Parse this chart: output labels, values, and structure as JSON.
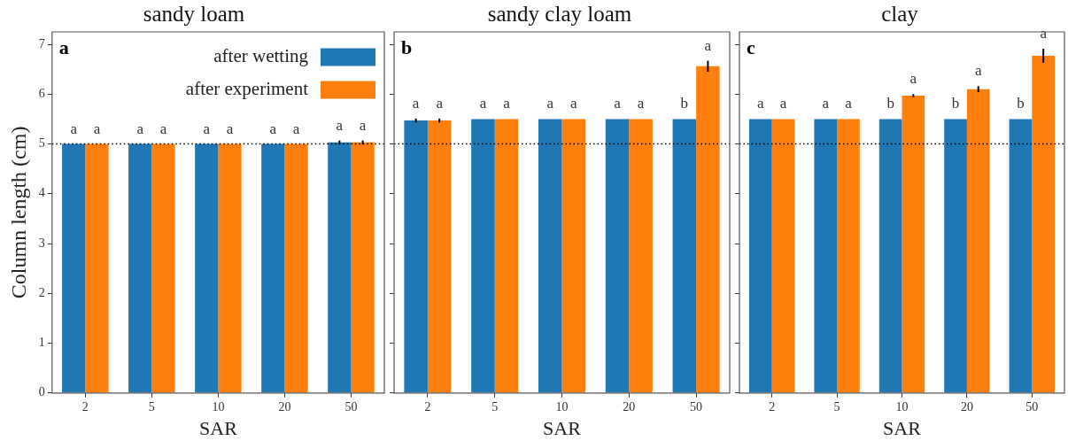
{
  "chart_data": [
    {
      "type": "bar",
      "title": "sandy loam",
      "xlabel": "SAR",
      "ylabel": "Column length (cm)",
      "categories": [
        "2",
        "5",
        "10",
        "20",
        "50"
      ],
      "ylim": [
        0,
        7.25
      ],
      "yticks": [
        0,
        1,
        2,
        3,
        4,
        5,
        6,
        7
      ],
      "grid": false,
      "legend": "top right",
      "series": [
        {
          "name": "after wetting",
          "color": "#1f77b4",
          "values": [
            5,
            5,
            5,
            5,
            5.03
          ],
          "errors": [
            null,
            null,
            null,
            null,
            0.04
          ]
        },
        {
          "name": "after experiment",
          "color": "#ff7f0e",
          "values": [
            5,
            5,
            5,
            5,
            5.03
          ],
          "errors": [
            null,
            null,
            null,
            null,
            0.04
          ]
        }
      ],
      "ref_lines": [
        {
          "axis": "y",
          "value": 5,
          "line_style": "dotted",
          "color": "#000000"
        }
      ],
      "annotations": [
        "a",
        {
          "text": "a",
          "x": "2",
          "y": 5
        },
        {
          "text": "a",
          "x": "2",
          "y": 5
        },
        {
          "text": "a",
          "x": "5",
          "y": 5
        },
        {
          "text": "a",
          "x": "5",
          "y": 5
        },
        {
          "text": "a",
          "x": "10",
          "y": 5
        },
        {
          "text": "a",
          "x": "10",
          "y": 5
        },
        {
          "text": "a",
          "x": "20",
          "y": 5
        },
        {
          "text": "a",
          "x": "20",
          "y": 5
        },
        {
          "text": "a",
          "x": "50",
          "y": 5.03
        },
        {
          "text": "a",
          "x": "50",
          "y": 5.03
        }
      ]
    },
    {
      "type": "bar",
      "title": "sandy clay loam",
      "xlabel": "SAR",
      "categories": [
        "2",
        "5",
        "10",
        "20",
        "50"
      ],
      "ylim": [
        0,
        7.25
      ],
      "yticks": [
        0,
        1,
        2,
        3,
        4,
        5,
        6,
        7
      ],
      "grid": false,
      "legend": false,
      "tick_labels": "x",
      "series": [
        {
          "color": "#1f77b4",
          "values": [
            5.47,
            5.5,
            5.5,
            5.5,
            5.5
          ],
          "errors": [
            0.04,
            null,
            null,
            null,
            null
          ]
        },
        {
          "color": "#ff7f0e",
          "values": [
            5.47,
            5.5,
            5.5,
            5.5,
            6.56
          ],
          "errors": [
            0.04,
            null,
            null,
            null,
            0.11
          ]
        }
      ],
      "ref_lines": [
        {
          "axis": "y",
          "value": 5,
          "line_style": "dotted",
          "color": "#000000"
        }
      ],
      "annotations": [
        "b",
        {
          "text": "a",
          "x": "2",
          "y": 5.47
        },
        {
          "text": "a",
          "x": "2",
          "y": 5.47
        },
        {
          "text": "a",
          "x": "5",
          "y": 5.5
        },
        {
          "text": "a",
          "x": "5",
          "y": 5.5
        },
        {
          "text": "a",
          "x": "10",
          "y": 5.5
        },
        {
          "text": "a",
          "x": "10",
          "y": 5.5
        },
        {
          "text": "a",
          "x": "20",
          "y": 5.5
        },
        {
          "text": "a",
          "x": "20",
          "y": 5.5
        },
        {
          "text": "b",
          "x": "50",
          "y": 5.5
        },
        {
          "text": "a",
          "x": "50",
          "y": 6.56
        }
      ]
    },
    {
      "type": "bar",
      "title": "clay",
      "xlabel": "SAR",
      "categories": [
        "2",
        "5",
        "10",
        "20",
        "50"
      ],
      "ylim": [
        0,
        7.25
      ],
      "yticks": [
        0,
        1,
        2,
        3,
        4,
        5,
        6,
        7
      ],
      "grid": false,
      "legend": false,
      "tick_labels": "x",
      "series": [
        {
          "color": "#1f77b4",
          "values": [
            5.5,
            5.5,
            5.5,
            5.5,
            5.5
          ]
        },
        {
          "color": "#ff7f0e",
          "values": [
            5.5,
            5.5,
            5.97,
            6.1,
            6.77
          ],
          "errors": [
            null,
            null,
            0.03,
            0.06,
            0.14
          ]
        }
      ],
      "ref_lines": [
        {
          "axis": "y",
          "value": 5,
          "line_style": "dotted",
          "color": "#000000"
        }
      ],
      "annotations": [
        "c",
        {
          "text": "a",
          "x": "2",
          "y": 5.5
        },
        {
          "text": "a",
          "x": "2",
          "y": 5.5
        },
        {
          "text": "a",
          "x": "5",
          "y": 5.5
        },
        {
          "text": "a",
          "x": "5",
          "y": 5.5
        },
        {
          "text": "b",
          "x": "10",
          "y": 5.5
        },
        {
          "text": "a",
          "x": "10",
          "y": 5.97
        },
        {
          "text": "b",
          "x": "20",
          "y": 5.5
        },
        {
          "text": "a",
          "x": "20",
          "y": 6.1
        },
        {
          "text": "b",
          "x": "50",
          "y": 5.5
        },
        {
          "text": "a",
          "x": "50",
          "y": 6.77
        }
      ]
    }
  ]
}
